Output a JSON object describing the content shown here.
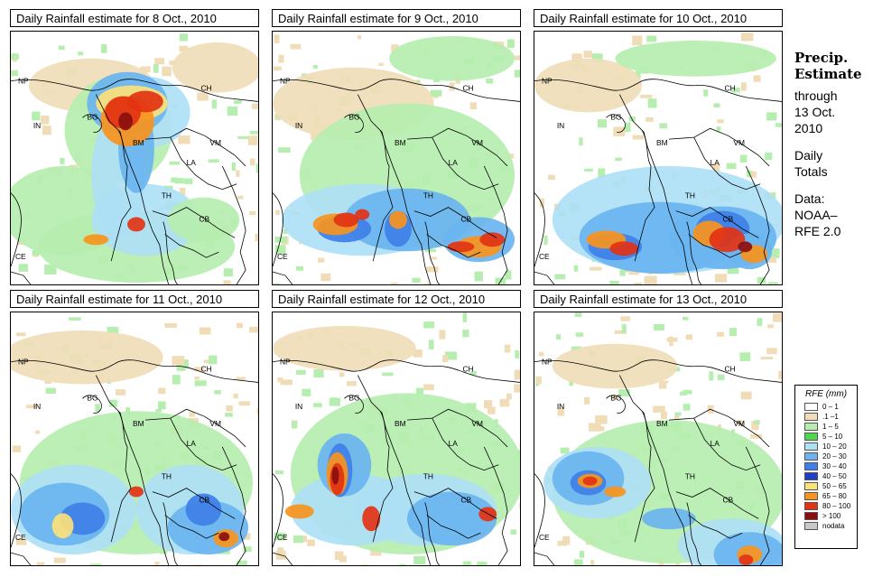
{
  "panels": [
    {
      "title": "Daily Rainfall estimate for  8 Oct., 2010",
      "scene": 0
    },
    {
      "title": "Daily Rainfall estimate for  9 Oct., 2010",
      "scene": 1
    },
    {
      "title": "Daily Rainfall estimate for  10 Oct., 2010",
      "scene": 2
    },
    {
      "title": "Daily Rainfall estimate for  11 Oct., 2010",
      "scene": 3
    },
    {
      "title": "Daily Rainfall estimate for  12 Oct., 2010",
      "scene": 4
    },
    {
      "title": "Daily Rainfall estimate for  13 Oct., 2010",
      "scene": 5
    }
  ],
  "map_labels": [
    "NP",
    "CH",
    "IN",
    "BG",
    "BM",
    "VM",
    "LA",
    "TH",
    "CB",
    "CE"
  ],
  "side": {
    "heading1": "Precip.",
    "heading2": "Estimate",
    "line1": "through",
    "line2": "13 Oct.",
    "line3": "2010",
    "line4": "Daily",
    "line5": "Totals",
    "line6": "Data:",
    "line7": "NOAA–",
    "line8": "RFE 2.0"
  },
  "legend": {
    "title": "RFE (mm)",
    "items": [
      {
        "label": "0 – 1",
        "color": "#ffffff"
      },
      {
        "label": ".1 –1",
        "color": "#f0ddb8"
      },
      {
        "label": "1 – 5",
        "color": "#b6eeb0"
      },
      {
        "label": "5 – 10",
        "color": "#4fd84f"
      },
      {
        "label": "10 – 20",
        "color": "#aee0f5"
      },
      {
        "label": "20 – 30",
        "color": "#6ab4f0"
      },
      {
        "label": "30 – 40",
        "color": "#3f7fe8"
      },
      {
        "label": "40 – 50",
        "color": "#1d3fc4"
      },
      {
        "label": "50 – 65",
        "color": "#fce07a"
      },
      {
        "label": "65 – 80",
        "color": "#f7941d"
      },
      {
        "label": "80 – 100",
        "color": "#e23314"
      },
      {
        "label": "> 100",
        "color": "#8b0f0f"
      },
      {
        "label": "nodata",
        "color": "#c8c8c8"
      }
    ]
  }
}
